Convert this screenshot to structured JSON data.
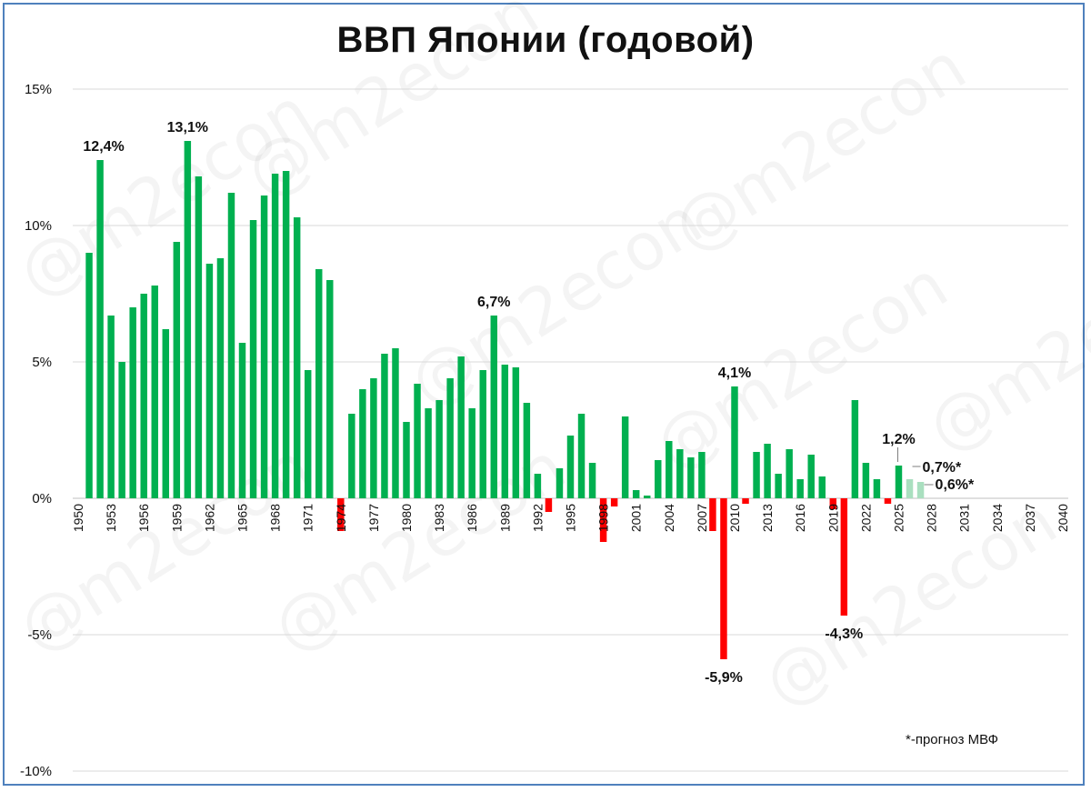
{
  "title": "ВВП Японии (годовой)",
  "footnote": "*-прогноз МВФ",
  "watermark": "@m2econ",
  "colors": {
    "positive": "#00b050",
    "negative": "#ff0000",
    "forecast": "#a9dfbf",
    "grid": "#d9d9d9",
    "border": "#4f81bd"
  },
  "chart_data": {
    "type": "bar",
    "title": "ВВП Японии (годовой)",
    "xlabel": "",
    "ylabel": "",
    "ylim": [
      -10,
      15
    ],
    "grid": true,
    "y_ticks": [
      "15%",
      "10%",
      "5%",
      "0%",
      "-5%",
      "-10%"
    ],
    "y_tick_values": [
      15,
      10,
      5,
      0,
      -5,
      -10
    ],
    "x_range": [
      1950,
      2040
    ],
    "x_tick_labels": [
      "1950",
      "1953",
      "1956",
      "1959",
      "1962",
      "1965",
      "1968",
      "1971",
      "1974",
      "1977",
      "1980",
      "1983",
      "1986",
      "1989",
      "1992",
      "1995",
      "1998",
      "2001",
      "2004",
      "2007",
      "2010",
      "2013",
      "2016",
      "2019",
      "2022",
      "2025",
      "2028",
      "2031",
      "2034",
      "2037",
      "2040"
    ],
    "years": [
      1951,
      1952,
      1953,
      1954,
      1955,
      1956,
      1957,
      1958,
      1959,
      1960,
      1961,
      1962,
      1963,
      1964,
      1965,
      1966,
      1967,
      1968,
      1969,
      1970,
      1971,
      1972,
      1973,
      1974,
      1975,
      1976,
      1977,
      1978,
      1979,
      1980,
      1981,
      1982,
      1983,
      1984,
      1985,
      1986,
      1987,
      1988,
      1989,
      1990,
      1991,
      1992,
      1993,
      1994,
      1995,
      1996,
      1997,
      1998,
      1999,
      2000,
      2001,
      2002,
      2003,
      2004,
      2005,
      2006,
      2007,
      2008,
      2009,
      2010,
      2011,
      2012,
      2013,
      2014,
      2015,
      2016,
      2017,
      2018,
      2019,
      2020,
      2021,
      2022,
      2023,
      2024,
      2025,
      2026
    ],
    "values": [
      9.0,
      12.4,
      6.7,
      5.0,
      7.0,
      7.5,
      7.8,
      6.2,
      9.4,
      13.1,
      11.8,
      8.6,
      8.8,
      11.2,
      5.7,
      10.2,
      11.1,
      11.9,
      12.0,
      10.3,
      4.7,
      8.4,
      8.0,
      -1.2,
      3.1,
      4.0,
      4.4,
      5.3,
      5.5,
      2.8,
      4.2,
      3.3,
      3.6,
      4.4,
      5.2,
      3.3,
      4.7,
      6.7,
      4.9,
      4.8,
      3.5,
      0.9,
      -0.5,
      1.1,
      2.3,
      3.1,
      1.3,
      -1.6,
      -0.3,
      3.0,
      0.3,
      0.1,
      1.4,
      2.1,
      1.8,
      1.5,
      1.7,
      -1.2,
      -5.9,
      4.1,
      -0.2,
      1.7,
      2.0,
      0.9,
      1.8,
      0.7,
      1.6,
      0.8,
      -0.4,
      -4.3,
      3.6,
      1.3,
      0.7,
      -0.2,
      1.2,
      0.7
    ],
    "forecast": [
      {
        "year": 2026,
        "value": 0.7
      },
      {
        "year": 2027,
        "value": 0.6
      }
    ],
    "annotations": [
      {
        "year": 1952,
        "value": 12.4,
        "label": "12,4%"
      },
      {
        "year": 1960,
        "value": 13.1,
        "label": "13,1%"
      },
      {
        "year": 1988,
        "value": 6.7,
        "label": "6,7%"
      },
      {
        "year": 2010,
        "value": 4.1,
        "label": "4,1%"
      },
      {
        "year": 2009,
        "value": -5.9,
        "label": "-5,9%"
      },
      {
        "year": 2020,
        "value": -4.3,
        "label": "-4,3%"
      },
      {
        "year": 2025,
        "value": 1.2,
        "label": "1,2%"
      },
      {
        "year": 2026,
        "value": 0.7,
        "label": "0,7%*"
      },
      {
        "year": 2027,
        "value": 0.6,
        "label": "0,6%*"
      }
    ]
  }
}
